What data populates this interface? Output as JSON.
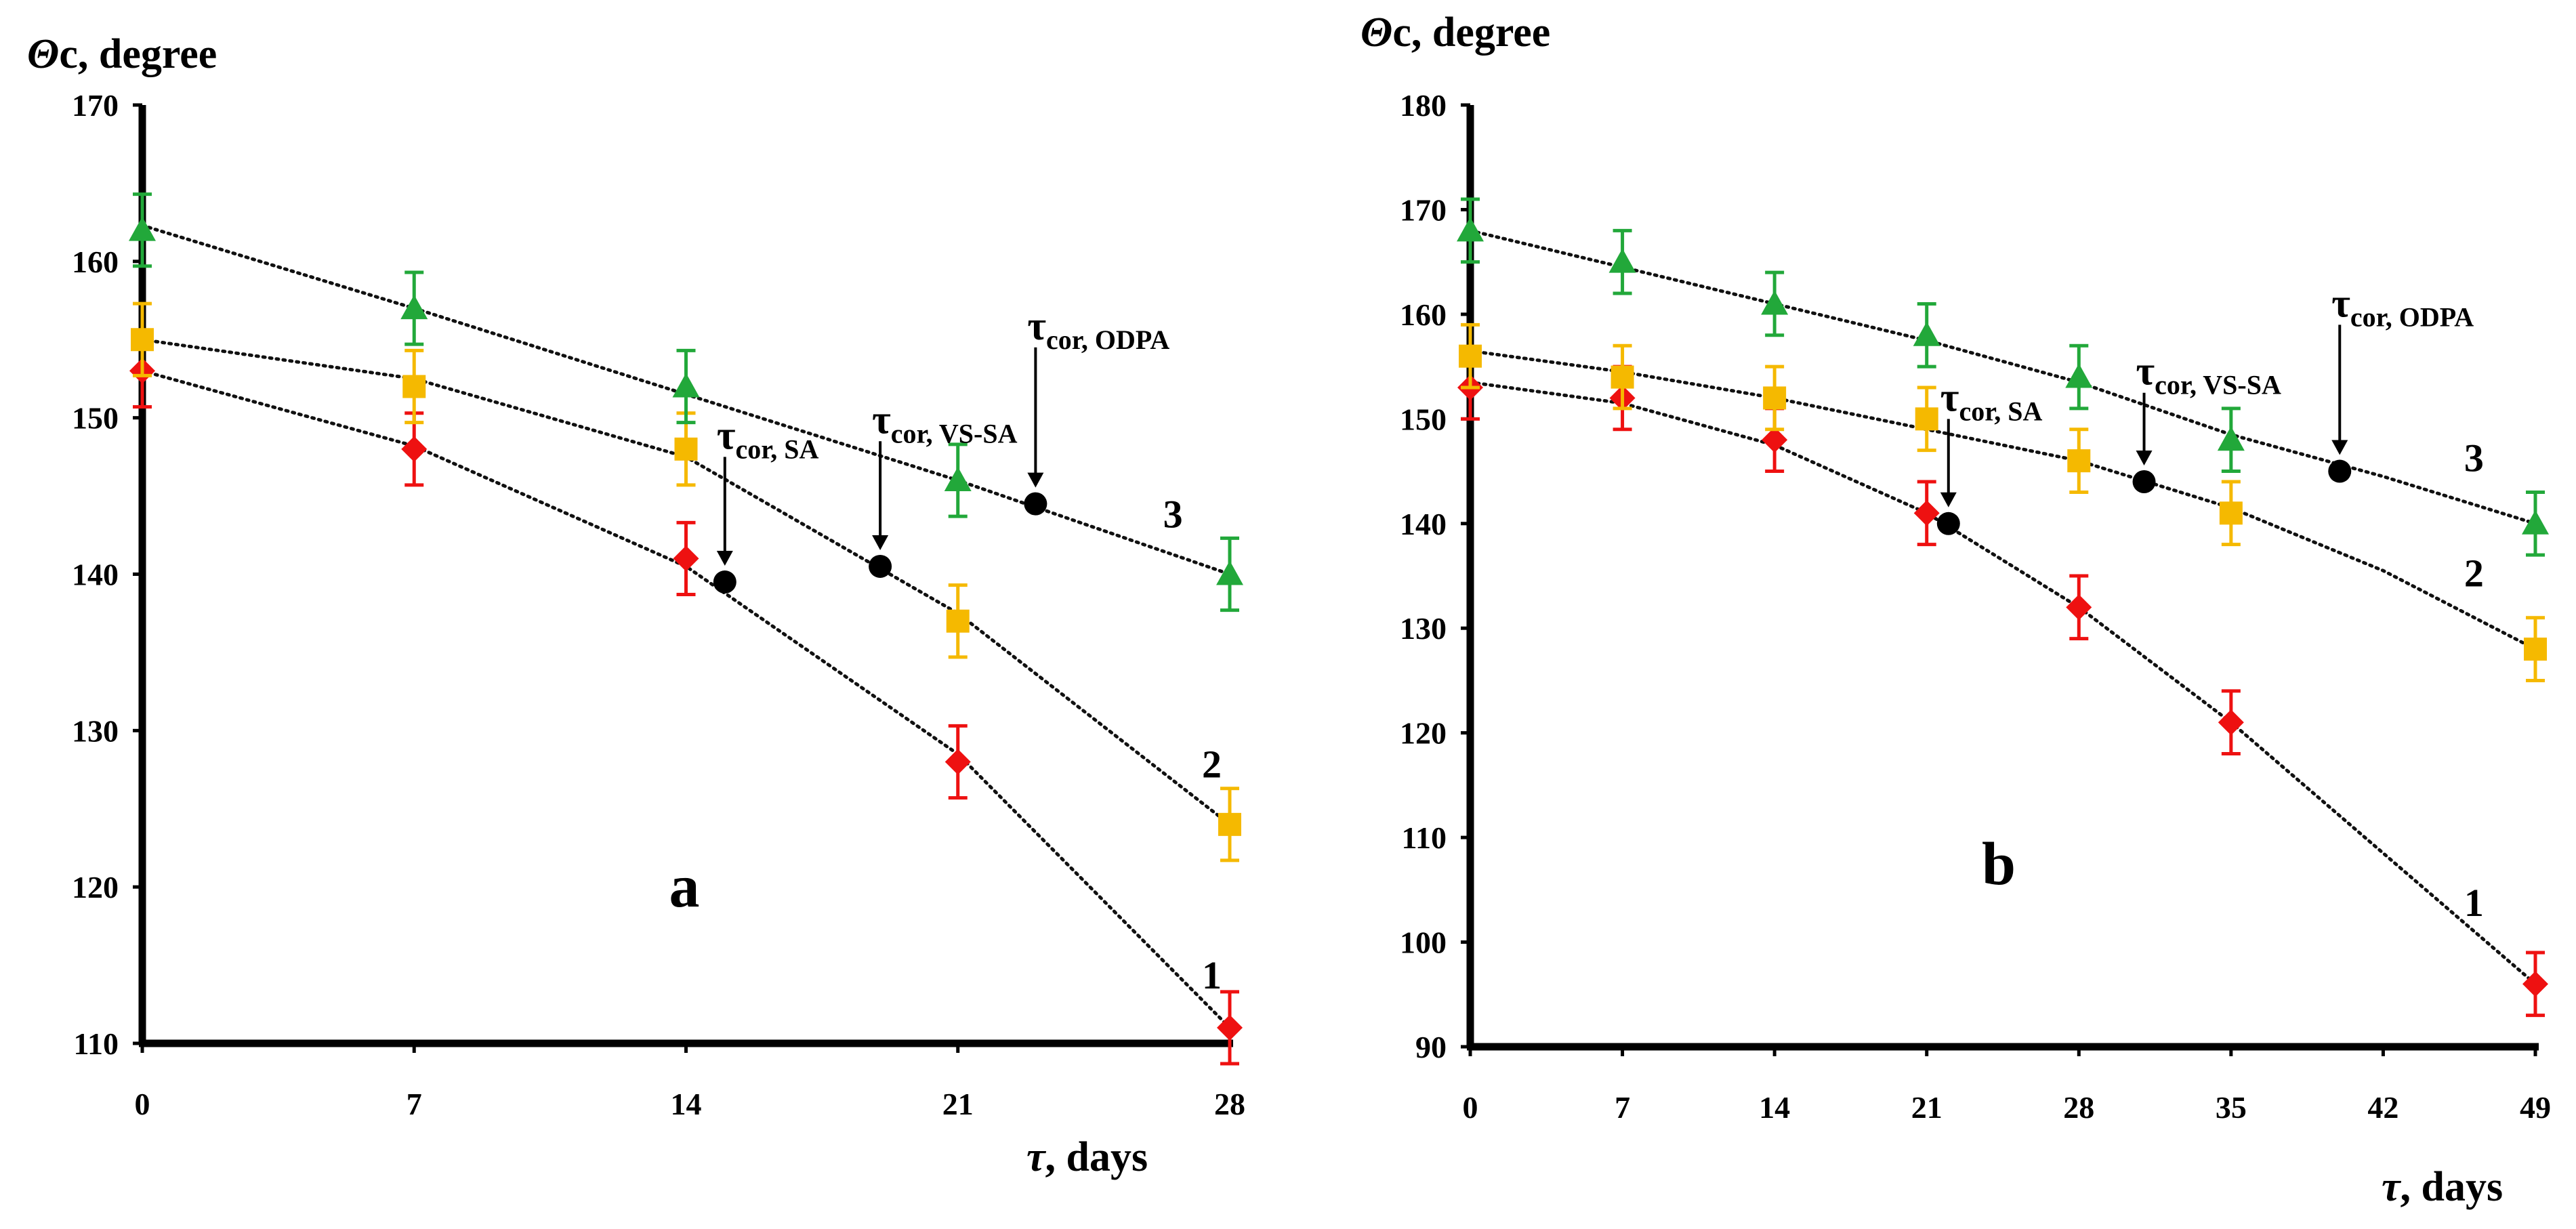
{
  "colors": {
    "series1": "#EE1111",
    "series2": "#F5B900",
    "series3": "#22A83A",
    "markers_cor": "#000000",
    "axis": "#000000"
  },
  "chart_data": [
    {
      "type": "scatter",
      "panel_label": "a",
      "ylabel": "Θc, degree",
      "ylabel_symbol": "Θ",
      "ylabel_sub": "c",
      "ylabel_rest": ", degree",
      "xlabel": "τ, days",
      "xlabel_symbol": "τ",
      "xlabel_rest": ", days",
      "xlim": [
        0,
        28
      ],
      "ylim": [
        110,
        170
      ],
      "xticks": [
        0,
        7,
        14,
        21,
        28
      ],
      "yticks": [
        110,
        120,
        130,
        140,
        150,
        160,
        170
      ],
      "error_bar": 2.3,
      "series": [
        {
          "name": "1",
          "marker": "diamond",
          "color": "#EE1111",
          "x": [
            0,
            7,
            14,
            21,
            28
          ],
          "y": [
            153,
            148,
            141,
            128,
            111
          ]
        },
        {
          "name": "2",
          "marker": "square",
          "color": "#F5B900",
          "x": [
            0,
            7,
            14,
            21,
            28
          ],
          "y": [
            155,
            152,
            148,
            137,
            124
          ]
        },
        {
          "name": "3",
          "marker": "triangle",
          "color": "#22A83A",
          "x": [
            0,
            7,
            14,
            21,
            28
          ],
          "y": [
            162,
            157,
            152,
            146,
            140
          ]
        }
      ],
      "trendlines": [
        {
          "series": "1",
          "x": [
            0,
            7,
            14,
            21,
            28
          ],
          "y": [
            153,
            148.2,
            140.5,
            128.5,
            111
          ]
        },
        {
          "series": "2",
          "x": [
            0,
            7,
            14,
            21,
            28
          ],
          "y": [
            155,
            152.5,
            147.5,
            137.5,
            124
          ]
        },
        {
          "series": "3",
          "x": [
            0,
            7,
            14,
            21,
            28
          ],
          "y": [
            162.3,
            157,
            151.5,
            146,
            140
          ]
        }
      ],
      "cor_points": [
        {
          "name": "SA",
          "x": 15,
          "y": 139.5,
          "label": "τcor, SA",
          "label_main": "τ",
          "label_sub": "cor, SA",
          "arrow_from_y": 147.5
        },
        {
          "name": "VS-SA",
          "x": 19,
          "y": 140.5,
          "label": "τcor, VS-SA",
          "label_main": "τ",
          "label_sub": "cor, VS-SA",
          "arrow_from_y": 148.5
        },
        {
          "name": "ODPA",
          "x": 23,
          "y": 144.5,
          "label": "τcor, ODPA",
          "label_main": "τ",
          "label_sub": "cor, ODPA",
          "arrow_from_y": 154.5
        }
      ],
      "series_labels": [
        {
          "text": "1",
          "x": 28,
          "y": 113.5
        },
        {
          "text": "2",
          "x": 28,
          "y": 127
        },
        {
          "text": "3",
          "x": 27,
          "y": 143
        }
      ]
    },
    {
      "type": "scatter",
      "panel_label": "b",
      "ylabel": "Θc, degree",
      "ylabel_symbol": "Θ",
      "ylabel_sub": "c",
      "ylabel_rest": ", degree",
      "xlabel": "τ, days",
      "xlabel_symbol": "τ",
      "xlabel_rest": ", days",
      "xlim": [
        0,
        49
      ],
      "ylim": [
        90,
        180
      ],
      "xticks": [
        0,
        7,
        14,
        21,
        28,
        35,
        42,
        49
      ],
      "yticks": [
        90,
        100,
        110,
        120,
        130,
        140,
        150,
        160,
        170,
        180
      ],
      "error_bar": 3,
      "series": [
        {
          "name": "1",
          "marker": "diamond",
          "color": "#EE1111",
          "x": [
            0,
            7,
            14,
            21,
            28,
            35,
            49
          ],
          "y": [
            153,
            152,
            148,
            141,
            132,
            121,
            96
          ]
        },
        {
          "name": "2",
          "marker": "square",
          "color": "#F5B900",
          "x": [
            0,
            7,
            14,
            21,
            28,
            35,
            49
          ],
          "y": [
            156,
            154,
            152,
            150,
            146,
            141,
            128
          ]
        },
        {
          "name": "3",
          "marker": "triangle",
          "color": "#22A83A",
          "x": [
            0,
            7,
            14,
            21,
            28,
            35,
            49
          ],
          "y": [
            168,
            165,
            161,
            158,
            154,
            148,
            140
          ]
        }
      ],
      "trendlines": [
        {
          "series": "1",
          "x": [
            0,
            7,
            14,
            21,
            28,
            35,
            42,
            49
          ],
          "y": [
            153.5,
            151.5,
            147.5,
            141,
            132,
            121,
            108.5,
            96
          ]
        },
        {
          "series": "2",
          "x": [
            0,
            7,
            14,
            21,
            28,
            35,
            42,
            49
          ],
          "y": [
            156.5,
            154.5,
            152,
            149,
            146,
            141.5,
            135.5,
            128
          ]
        },
        {
          "series": "3",
          "x": [
            0,
            7,
            14,
            21,
            28,
            35,
            42,
            49
          ],
          "y": [
            168,
            164.5,
            161,
            157.5,
            153.5,
            148.5,
            144.5,
            140
          ]
        }
      ],
      "cor_points": [
        {
          "name": "SA",
          "x": 22,
          "y": 140,
          "label": "τcor, SA",
          "label_main": "τ",
          "label_sub": "cor, SA",
          "arrow_from_y": 150
        },
        {
          "name": "VS-SA",
          "x": 31,
          "y": 144,
          "label": "τcor, VS-SA",
          "label_main": "τ",
          "label_sub": "cor, VS-SA",
          "arrow_from_y": 152.5
        },
        {
          "name": "ODPA",
          "x": 40,
          "y": 145,
          "label": "τcor, ODPA",
          "label_main": "τ",
          "label_sub": "cor, ODPA",
          "arrow_from_y": 159
        }
      ],
      "series_labels": [
        {
          "text": "1",
          "x": 47,
          "y": 102.5
        },
        {
          "text": "2",
          "x": 47,
          "y": 134
        },
        {
          "text": "3",
          "x": 47,
          "y": 145
        }
      ]
    }
  ]
}
